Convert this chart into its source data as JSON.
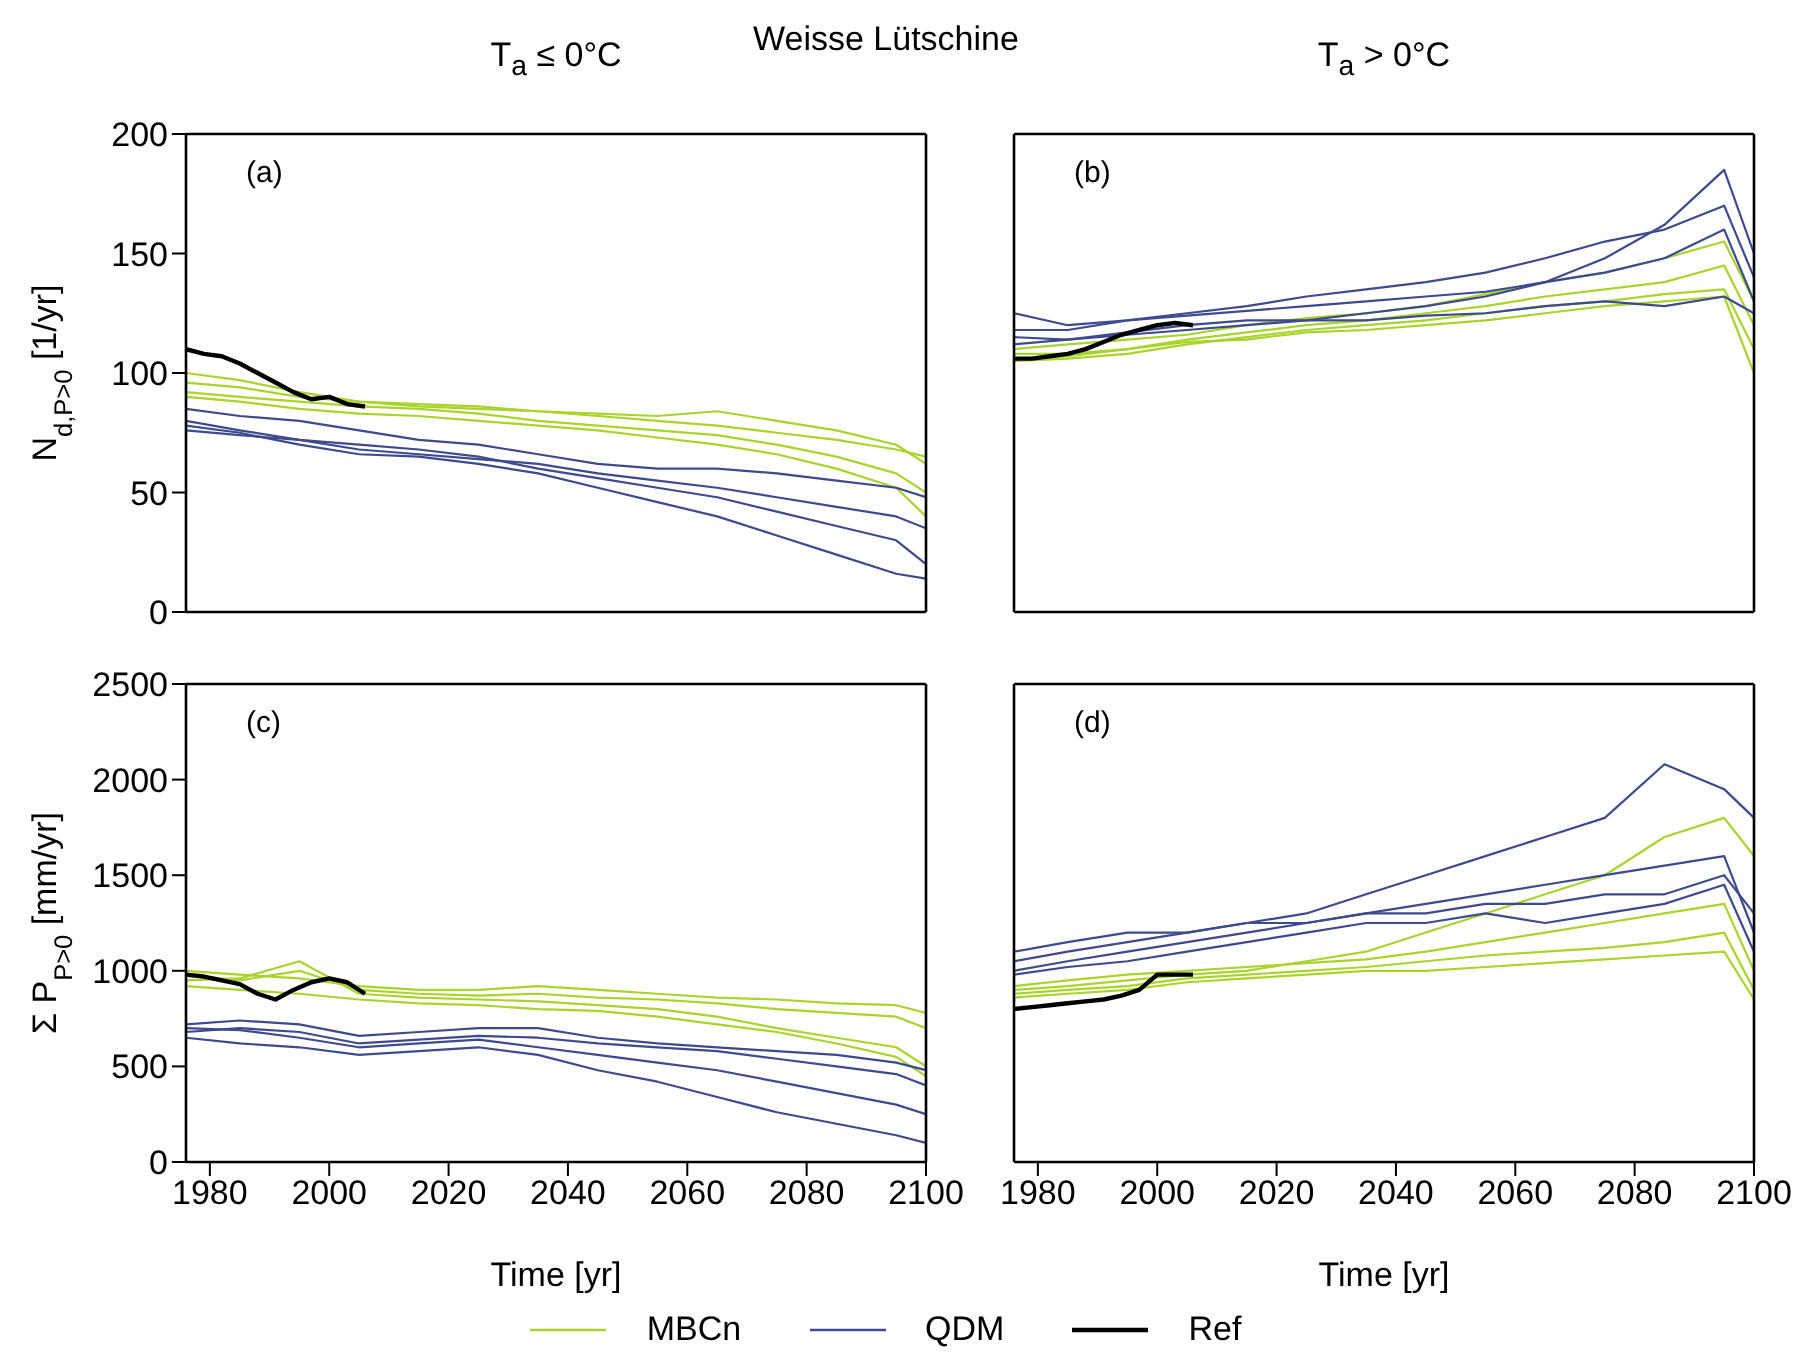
{
  "chart_data": [
    {
      "type": "line",
      "title": "T$_{a}$ ≤  0°C",
      "ylabel": "N$_{d,P>0}$ [1/yr]",
      "annotations": [
        "(a)",
        "Weisse Lütschine"
      ],
      "x": [
        1976,
        1985,
        1995,
        2005,
        2015,
        2025,
        2035,
        2045,
        2055,
        2065,
        2075,
        2085,
        2095,
        2100
      ],
      "xlim": [
        1976,
        2100
      ],
      "xticks": [
        1980,
        2000,
        2020,
        2040,
        2060,
        2080,
        2100
      ],
      "ylim": [
        0,
        200
      ],
      "yticks": [
        0,
        50,
        100,
        150,
        200
      ],
      "tick_labels": "y",
      "grid": false,
      "line_style": "solid",
      "marker": "none",
      "series": [
        {
          "color": "#a8d42c",
          "values": [
            96,
            94,
            90,
            88,
            86,
            85,
            84,
            82,
            80,
            78,
            75,
            72,
            68,
            65
          ]
        },
        {
          "color": "#a8d42c",
          "values": [
            92,
            90,
            88,
            86,
            85,
            83,
            80,
            78,
            76,
            74,
            70,
            65,
            58,
            50
          ]
        },
        {
          "color": "#a8d42c",
          "values": [
            100,
            97,
            92,
            88,
            87,
            86,
            84,
            83,
            82,
            84,
            80,
            76,
            70,
            62
          ]
        },
        {
          "color": "#a8d42c",
          "values": [
            90,
            88,
            85,
            83,
            82,
            80,
            78,
            76,
            73,
            70,
            66,
            60,
            52,
            40
          ]
        },
        {
          "color": "#3d4a8e",
          "values": [
            80,
            76,
            72,
            70,
            68,
            65,
            60,
            56,
            52,
            48,
            42,
            36,
            30,
            20
          ]
        },
        {
          "color": "#3d4a8e",
          "values": [
            76,
            74,
            72,
            68,
            66,
            64,
            62,
            58,
            55,
            52,
            48,
            44,
            40,
            35
          ]
        },
        {
          "color": "#3d4a8e",
          "values": [
            85,
            82,
            80,
            76,
            72,
            70,
            66,
            62,
            60,
            60,
            58,
            55,
            52,
            48
          ]
        },
        {
          "color": "#3d4a8e",
          "values": [
            78,
            75,
            70,
            66,
            65,
            62,
            58,
            52,
            46,
            40,
            32,
            24,
            16,
            14
          ]
        },
        {
          "color": "#000000",
          "x": [
            1976,
            1979,
            1982,
            1985,
            1988,
            1991,
            1994,
            1997,
            2000,
            2003,
            2006
          ],
          "values": [
            110,
            108,
            107,
            104,
            100,
            96,
            92,
            89,
            90,
            87,
            86
          ]
        }
      ]
    },
    {
      "type": "line",
      "title": "T$_{a}$ > 0°C",
      "annotations": [
        "(b)"
      ],
      "x": [
        1976,
        1985,
        1995,
        2005,
        2015,
        2025,
        2035,
        2045,
        2055,
        2065,
        2075,
        2085,
        2095,
        2100
      ],
      "xlim": [
        1976,
        2100
      ],
      "xticks": [
        1980,
        2000,
        2020,
        2040,
        2060,
        2080,
        2100
      ],
      "ylim": [
        0,
        200
      ],
      "yticks": [
        0,
        50,
        100,
        150,
        200
      ],
      "tick_labels": false,
      "grid": false,
      "line_style": "solid",
      "marker": "none",
      "series": [
        {
          "color": "#a8d42c",
          "values": [
            108,
            108,
            110,
            114,
            117,
            120,
            122,
            125,
            128,
            132,
            135,
            138,
            145,
            120
          ]
        },
        {
          "color": "#a8d42c",
          "values": [
            105,
            106,
            108,
            112,
            115,
            118,
            120,
            122,
            125,
            128,
            130,
            133,
            135,
            110
          ]
        },
        {
          "color": "#a8d42c",
          "values": [
            110,
            112,
            114,
            116,
            120,
            123,
            125,
            128,
            133,
            138,
            142,
            148,
            155,
            130
          ]
        },
        {
          "color": "#a8d42c",
          "values": [
            106,
            107,
            110,
            113,
            114,
            117,
            118,
            120,
            122,
            125,
            128,
            130,
            132,
            100
          ]
        },
        {
          "color": "#3d4a8e",
          "values": [
            125,
            120,
            122,
            125,
            128,
            132,
            135,
            138,
            142,
            148,
            155,
            160,
            170,
            140
          ]
        },
        {
          "color": "#3d4a8e",
          "values": [
            118,
            118,
            122,
            124,
            126,
            128,
            130,
            132,
            134,
            138,
            142,
            148,
            160,
            130
          ]
        },
        {
          "color": "#3d4a8e",
          "values": [
            112,
            114,
            116,
            118,
            120,
            122,
            125,
            128,
            132,
            138,
            148,
            162,
            185,
            150
          ]
        },
        {
          "color": "#3d4a8e",
          "values": [
            115,
            114,
            117,
            120,
            122,
            122,
            122,
            124,
            125,
            128,
            130,
            128,
            132,
            125
          ]
        },
        {
          "color": "#000000",
          "x": [
            1976,
            1979,
            1982,
            1985,
            1988,
            1991,
            1994,
            1997,
            2000,
            2003,
            2006
          ],
          "values": [
            106,
            106,
            107,
            108,
            110,
            113,
            116,
            118,
            120,
            121,
            120
          ]
        }
      ]
    },
    {
      "type": "line",
      "xlabel": "Time [yr]",
      "ylabel": "Σ P$_{P>0}$ [mm/yr]",
      "annotations": [
        "(c)"
      ],
      "legend": "bottom",
      "x": [
        1976,
        1985,
        1995,
        2005,
        2015,
        2025,
        2035,
        2045,
        2055,
        2065,
        2075,
        2085,
        2095,
        2100
      ],
      "xlim": [
        1976,
        2100
      ],
      "xticks": [
        1980,
        2000,
        2020,
        2040,
        2060,
        2080,
        2100
      ],
      "ylim": [
        0,
        2500
      ],
      "yticks": [
        0,
        500,
        1000,
        1500,
        2000,
        2500
      ],
      "grid": false,
      "line_style": "solid",
      "marker": "none",
      "series": [
        {
          "name": "MBCn",
          "color": "#a8d42c",
          "values": [
            980,
            950,
            1000,
            900,
            880,
            870,
            880,
            860,
            850,
            830,
            800,
            780,
            760,
            700
          ]
        },
        {
          "color": "#a8d42c",
          "values": [
            950,
            960,
            1050,
            880,
            860,
            850,
            840,
            820,
            800,
            760,
            700,
            650,
            600,
            500
          ]
        },
        {
          "color": "#a8d42c",
          "values": [
            1000,
            980,
            960,
            920,
            900,
            900,
            920,
            900,
            880,
            860,
            850,
            830,
            820,
            780
          ]
        },
        {
          "color": "#a8d42c",
          "values": [
            920,
            900,
            880,
            850,
            830,
            820,
            800,
            790,
            760,
            720,
            680,
            620,
            550,
            450
          ]
        },
        {
          "name": "QDM",
          "color": "#3d4a8e",
          "values": [
            700,
            690,
            650,
            600,
            620,
            640,
            600,
            560,
            520,
            480,
            420,
            360,
            300,
            250
          ]
        },
        {
          "color": "#3d4a8e",
          "values": [
            680,
            700,
            680,
            620,
            640,
            660,
            650,
            620,
            600,
            580,
            540,
            500,
            460,
            400
          ]
        },
        {
          "color": "#3d4a8e",
          "values": [
            720,
            740,
            720,
            660,
            680,
            700,
            700,
            650,
            620,
            600,
            580,
            560,
            520,
            480
          ]
        },
        {
          "color": "#3d4a8e",
          "values": [
            650,
            620,
            600,
            560,
            580,
            600,
            560,
            480,
            420,
            340,
            260,
            200,
            140,
            100
          ]
        },
        {
          "name": "Ref",
          "color": "#000000",
          "x": [
            1976,
            1979,
            1982,
            1985,
            1988,
            1991,
            1994,
            1997,
            2000,
            2003,
            2006
          ],
          "values": [
            980,
            970,
            950,
            930,
            880,
            850,
            900,
            940,
            960,
            940,
            880
          ]
        }
      ]
    },
    {
      "type": "line",
      "xlabel": "Time [yr]",
      "annotations": [
        "(d)"
      ],
      "x": [
        1976,
        1985,
        1995,
        2005,
        2015,
        2025,
        2035,
        2045,
        2055,
        2065,
        2075,
        2085,
        2095,
        2100
      ],
      "xlim": [
        1976,
        2100
      ],
      "xticks": [
        1980,
        2000,
        2020,
        2040,
        2060,
        2080,
        2100
      ],
      "ylim": [
        0,
        2500
      ],
      "yticks": [
        0,
        500,
        1000,
        1500,
        2000,
        2500
      ],
      "tick_labels": "x",
      "grid": false,
      "line_style": "solid",
      "marker": "none",
      "series": [
        {
          "color": "#a8d42c",
          "values": [
            880,
            900,
            920,
            960,
            980,
            1000,
            1020,
            1050,
            1080,
            1100,
            1120,
            1150,
            1200,
            900
          ]
        },
        {
          "color": "#a8d42c",
          "values": [
            900,
            920,
            950,
            980,
            1000,
            1050,
            1100,
            1200,
            1300,
            1400,
            1500,
            1700,
            1800,
            1600
          ]
        },
        {
          "color": "#a8d42c",
          "values": [
            860,
            880,
            900,
            940,
            960,
            980,
            1000,
            1000,
            1020,
            1040,
            1060,
            1080,
            1100,
            850
          ]
        },
        {
          "color": "#a8d42c",
          "values": [
            920,
            950,
            980,
            1000,
            1020,
            1040,
            1060,
            1100,
            1150,
            1200,
            1250,
            1300,
            1350,
            1000
          ]
        },
        {
          "color": "#3d4a8e",
          "values": [
            1050,
            1100,
            1150,
            1200,
            1250,
            1300,
            1400,
            1500,
            1600,
            1700,
            1800,
            2080,
            1950,
            1800
          ]
        },
        {
          "color": "#3d4a8e",
          "values": [
            1000,
            1050,
            1100,
            1150,
            1200,
            1250,
            1300,
            1350,
            1400,
            1450,
            1500,
            1550,
            1600,
            1200
          ]
        },
        {
          "color": "#3d4a8e",
          "values": [
            1100,
            1150,
            1200,
            1200,
            1250,
            1250,
            1300,
            1300,
            1350,
            1350,
            1400,
            1400,
            1500,
            1300
          ]
        },
        {
          "color": "#3d4a8e",
          "values": [
            980,
            1020,
            1050,
            1100,
            1150,
            1200,
            1250,
            1250,
            1300,
            1250,
            1300,
            1350,
            1450,
            1100
          ]
        },
        {
          "color": "#000000",
          "x": [
            1976,
            1979,
            1982,
            1985,
            1988,
            1991,
            1994,
            1997,
            2000,
            2003,
            2006
          ],
          "values": [
            800,
            810,
            820,
            830,
            840,
            850,
            870,
            900,
            980,
            980,
            980
          ]
        }
      ]
    }
  ]
}
